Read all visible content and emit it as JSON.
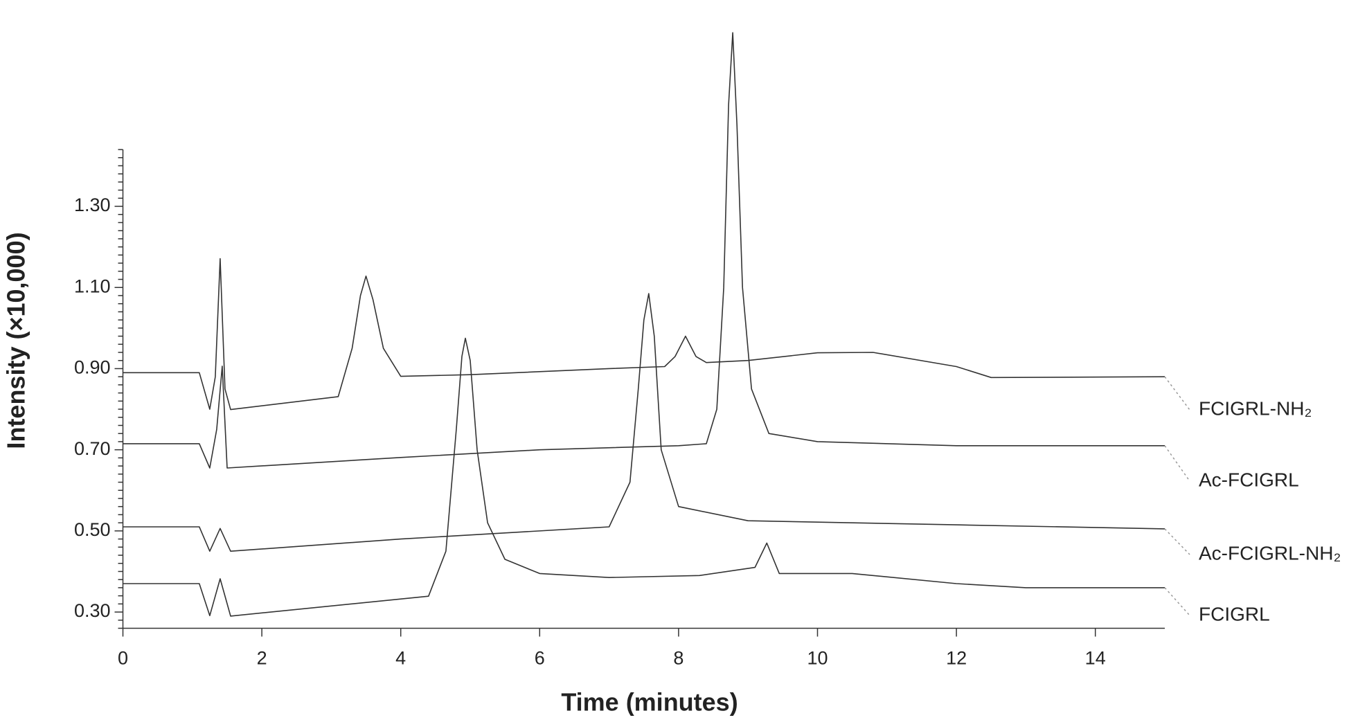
{
  "chart_data": {
    "type": "line",
    "xlabel": "Time (minutes)",
    "ylabel": "Intensity (×10,000)",
    "xlim": [
      0,
      15
    ],
    "ylim": [
      0.26,
      1.44
    ],
    "xticks": [
      0,
      2,
      4,
      6,
      8,
      10,
      12,
      14
    ],
    "yticks": [
      {
        "value": 0.3,
        "label": "0.30"
      },
      {
        "value": 0.5,
        "label": "0.50"
      },
      {
        "value": 0.7,
        "label": "0.70"
      },
      {
        "value": 0.9,
        "label": "0.90"
      },
      {
        "value": 1.1,
        "label": "1.10"
      },
      {
        "value": 1.3,
        "label": "1.30"
      }
    ],
    "yminorticks": [
      0.26,
      0.28,
      0.32,
      0.34,
      0.36,
      0.38,
      0.4,
      0.42,
      0.44,
      0.46,
      0.48,
      0.52,
      0.54,
      0.56,
      0.58,
      0.6,
      0.62,
      0.64,
      0.66,
      0.68,
      0.72,
      0.74,
      0.76,
      0.78,
      0.8,
      0.82,
      0.84,
      0.86,
      0.88,
      0.92,
      0.94,
      0.96,
      0.98,
      1.0,
      1.02,
      1.04,
      1.06,
      1.08,
      1.12,
      1.14,
      1.16,
      1.18,
      1.2,
      1.22,
      1.24,
      1.26,
      1.28,
      1.32,
      1.34,
      1.36,
      1.38,
      1.4,
      1.42,
      1.44
    ],
    "grid": false,
    "series": [
      {
        "name": "FCIGRL-NH₂",
        "color": "#333333",
        "x": [
          0,
          1.1,
          1.25,
          1.33,
          1.4,
          1.47,
          1.55,
          3.1,
          3.3,
          3.42,
          3.5,
          3.6,
          3.75,
          4.0,
          5.0,
          7.0,
          7.8,
          7.95,
          8.1,
          8.25,
          8.4,
          9.0,
          10.0,
          10.8,
          12.0,
          12.5,
          15.0
        ],
        "values": [
          0.89,
          0.89,
          0.8,
          0.88,
          1.171,
          0.85,
          0.799,
          0.831,
          0.95,
          1.08,
          1.128,
          1.07,
          0.95,
          0.881,
          0.885,
          0.9,
          0.905,
          0.93,
          0.98,
          0.93,
          0.915,
          0.92,
          0.939,
          0.94,
          0.905,
          0.878,
          0.88
        ]
      },
      {
        "name": "Ac-FCIGRL",
        "color": "#333333",
        "x": [
          0,
          1.1,
          1.25,
          1.35,
          1.43,
          1.5,
          4.0,
          6.0,
          8.0,
          8.4,
          8.55,
          8.65,
          8.72,
          8.78,
          8.84,
          8.92,
          9.05,
          9.3,
          10.0,
          12.0,
          15.0
        ],
        "values": [
          0.715,
          0.715,
          0.655,
          0.75,
          0.906,
          0.655,
          0.681,
          0.7,
          0.71,
          0.715,
          0.8,
          1.1,
          1.55,
          1.728,
          1.5,
          1.1,
          0.85,
          0.74,
          0.72,
          0.71,
          0.71
        ]
      },
      {
        "name": "Ac-FCIGRL-NH₂",
        "color": "#333333",
        "x": [
          0,
          1.1,
          1.25,
          1.4,
          1.55,
          4.0,
          7.0,
          7.3,
          7.42,
          7.5,
          7.57,
          7.65,
          7.75,
          8.0,
          9.0,
          12.0,
          15.0
        ],
        "values": [
          0.51,
          0.51,
          0.45,
          0.506,
          0.45,
          0.48,
          0.51,
          0.62,
          0.85,
          1.02,
          1.085,
          0.98,
          0.7,
          0.56,
          0.525,
          0.515,
          0.505
        ]
      },
      {
        "name": "FCIGRL",
        "color": "#333333",
        "x": [
          0,
          1.1,
          1.25,
          1.4,
          1.55,
          4.4,
          4.65,
          4.8,
          4.88,
          4.93,
          5.0,
          5.1,
          5.25,
          5.5,
          6.0,
          7.0,
          8.3,
          9.1,
          9.27,
          9.45,
          10.5,
          12.0,
          13.0,
          15.0
        ],
        "values": [
          0.37,
          0.37,
          0.291,
          0.382,
          0.29,
          0.339,
          0.45,
          0.75,
          0.93,
          0.975,
          0.92,
          0.7,
          0.52,
          0.43,
          0.395,
          0.385,
          0.39,
          0.41,
          0.47,
          0.395,
          0.395,
          0.37,
          0.36,
          0.36
        ]
      }
    ]
  }
}
